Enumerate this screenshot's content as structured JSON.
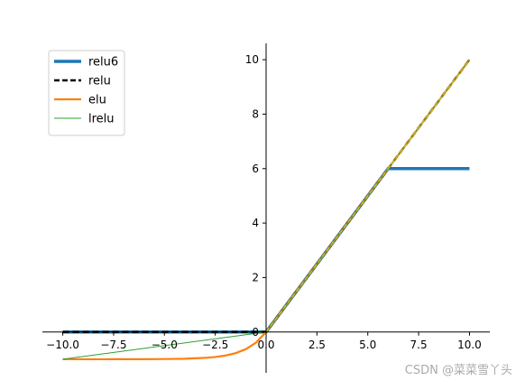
{
  "chart_data": {
    "type": "line",
    "title": "",
    "xlabel": "",
    "ylabel": "",
    "xlim": [
      -11,
      11
    ],
    "ylim": [
      -1.5,
      10.6
    ],
    "x_ticks": [
      -10.0,
      -7.5,
      -5.0,
      -2.5,
      0.0,
      2.5,
      5.0,
      7.5,
      10.0
    ],
    "x_tick_labels": [
      "−10.0",
      "−7.5",
      "−5.0",
      "−2.5",
      "0.0",
      "2.5",
      "5.0",
      "7.5",
      "10.0"
    ],
    "y_ticks": [
      0,
      2,
      4,
      6,
      8,
      10
    ],
    "y_tick_labels": [
      "0",
      "2",
      "4",
      "6",
      "8",
      "10"
    ],
    "spines": "centered at origin",
    "grid": false,
    "legend_position": "top-left",
    "series": [
      {
        "name": "relu6",
        "color": "#1f77b4",
        "style": "solid",
        "x": [
          -10,
          -5,
          0,
          6,
          10
        ],
        "y": [
          0,
          0,
          0,
          6,
          6
        ]
      },
      {
        "name": "relu",
        "color": "#000000",
        "style": "dashed",
        "x": [
          -10,
          -5,
          0,
          5,
          10
        ],
        "y": [
          0,
          0,
          0,
          5,
          10
        ]
      },
      {
        "name": "elu",
        "color": "#ff7f0e",
        "style": "solid",
        "x": [
          -10,
          -8,
          -6,
          -5,
          -4,
          -3,
          -2.5,
          -2,
          -1.5,
          -1,
          -0.5,
          0,
          5,
          10
        ],
        "y": [
          -1.0,
          -1.0,
          -0.998,
          -0.993,
          -0.982,
          -0.95,
          -0.918,
          -0.865,
          -0.777,
          -0.632,
          -0.393,
          0,
          5,
          10
        ]
      },
      {
        "name": "lrelu",
        "color": "#2ca02c",
        "style": "solid",
        "x": [
          -10,
          0,
          5,
          10
        ],
        "y": [
          -1.0,
          0,
          5,
          10
        ]
      }
    ],
    "overlay_line": {
      "color": "#bcbd22",
      "x": [
        0,
        10
      ],
      "y": [
        0,
        10
      ]
    }
  },
  "watermark": "CSDN @菜菜雪丫头"
}
